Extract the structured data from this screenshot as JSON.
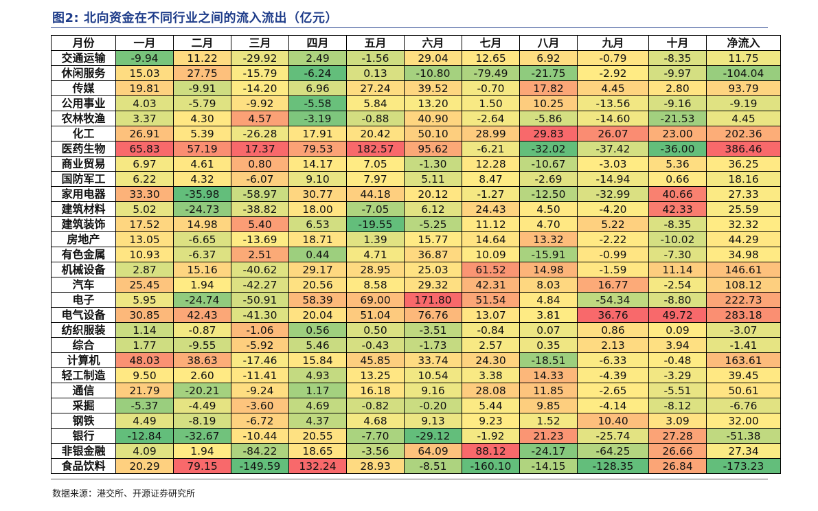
{
  "title": "图2:  北向资金在不同行业之间的流入流出（亿元）",
  "source": "数据来源：港交所、开源证券研究所",
  "table": {
    "corner": "月份",
    "columns": [
      "一月",
      "二月",
      "三月",
      "四月",
      "五月",
      "六月",
      "七月",
      "八月",
      "九月",
      "十月",
      "净流入"
    ],
    "rows": [
      {
        "label": "交通运输",
        "values": [
          "-9.94",
          "11.22",
          "-29.92",
          "2.49",
          "-1.56",
          "29.04",
          "12.65",
          "6.92",
          "-0.79",
          "-8.35",
          "11.75"
        ]
      },
      {
        "label": "休闲服务",
        "values": [
          "15.03",
          "27.75",
          "-15.79",
          "-6.24",
          "0.13",
          "-10.80",
          "-79.49",
          "-21.75",
          "-2.92",
          "-9.97",
          "-104.04"
        ]
      },
      {
        "label": "传媒",
        "values": [
          "19.81",
          "-9.91",
          "-14.20",
          "6.96",
          "27.24",
          "39.52",
          "-0.70",
          "17.82",
          "4.45",
          "2.80",
          "93.79"
        ]
      },
      {
        "label": "公用事业",
        "values": [
          "4.03",
          "-5.79",
          "-9.92",
          "-5.58",
          "5.84",
          "13.20",
          "1.50",
          "10.25",
          "-13.56",
          "-9.16",
          "-9.19"
        ]
      },
      {
        "label": "农林牧渔",
        "values": [
          "3.37",
          "4.30",
          "4.57",
          "-3.19",
          "-0.88",
          "40.90",
          "-2.64",
          "-5.86",
          "-14.60",
          "-21.53",
          "4.45"
        ]
      },
      {
        "label": "化工",
        "values": [
          "26.91",
          "5.39",
          "-26.28",
          "17.91",
          "20.42",
          "50.10",
          "28.99",
          "29.83",
          "26.07",
          "23.00",
          "202.36"
        ]
      },
      {
        "label": "医药生物",
        "values": [
          "65.83",
          "57.19",
          "17.37",
          "79.53",
          "182.57",
          "95.62",
          "-6.21",
          "-32.02",
          "-37.42",
          "-36.00",
          "386.46"
        ]
      },
      {
        "label": "商业贸易",
        "values": [
          "6.97",
          "4.61",
          "0.80",
          "14.17",
          "7.05",
          "-1.30",
          "12.28",
          "-10.67",
          "-3.03",
          "5.36",
          "36.25"
        ]
      },
      {
        "label": "国防军工",
        "values": [
          "6.22",
          "4.32",
          "-6.07",
          "9.10",
          "7.97",
          "5.11",
          "8.47",
          "-2.69",
          "-14.94",
          "0.66",
          "18.16"
        ]
      },
      {
        "label": "家用电器",
        "values": [
          "33.30",
          "-35.98",
          "-58.97",
          "30.77",
          "44.18",
          "20.12",
          "-1.27",
          "-12.50",
          "-32.99",
          "40.66",
          "27.33"
        ]
      },
      {
        "label": "建筑材料",
        "values": [
          "5.02",
          "-24.73",
          "-38.82",
          "18.00",
          "-7.05",
          "6.12",
          "24.43",
          "4.50",
          "-4.20",
          "42.33",
          "25.59"
        ]
      },
      {
        "label": "建筑装饰",
        "values": [
          "17.52",
          "14.98",
          "5.40",
          "6.53",
          "-19.55",
          "-5.25",
          "11.12",
          "4.70",
          "5.22",
          "-8.35",
          "32.32"
        ]
      },
      {
        "label": "房地产",
        "values": [
          "13.05",
          "-6.65",
          "-13.69",
          "18.71",
          "1.39",
          "15.77",
          "14.64",
          "13.32",
          "-2.22",
          "-10.02",
          "44.29"
        ]
      },
      {
        "label": "有色金属",
        "values": [
          "10.93",
          "-6.37",
          "2.51",
          "0.44",
          "4.71",
          "36.87",
          "10.09",
          "-15.91",
          "-0.99",
          "-7.30",
          "34.98"
        ]
      },
      {
        "label": "机械设备",
        "values": [
          "2.87",
          "15.16",
          "-40.62",
          "29.17",
          "28.95",
          "25.03",
          "61.52",
          "14.98",
          "-1.59",
          "11.14",
          "146.61"
        ]
      },
      {
        "label": "汽车",
        "values": [
          "25.45",
          "1.94",
          "-42.27",
          "20.56",
          "8.58",
          "29.32",
          "42.31",
          "8.03",
          "16.77",
          "-2.54",
          "108.12"
        ]
      },
      {
        "label": "电子",
        "values": [
          "5.95",
          "-24.74",
          "-50.91",
          "58.39",
          "69.00",
          "171.80",
          "51.54",
          "4.84",
          "-54.34",
          "-8.80",
          "222.73"
        ]
      },
      {
        "label": "电气设备",
        "values": [
          "30.85",
          "42.43",
          "-41.30",
          "20.04",
          "51.04",
          "76.76",
          "13.07",
          "3.81",
          "36.76",
          "49.72",
          "283.18"
        ]
      },
      {
        "label": "纺织服装",
        "values": [
          "1.14",
          "-0.87",
          "-1.06",
          "0.56",
          "0.50",
          "-3.51",
          "-0.84",
          "0.07",
          "0.86",
          "0.09",
          "-3.07"
        ]
      },
      {
        "label": "综合",
        "values": [
          "1.77",
          "-9.55",
          "-5.92",
          "5.46",
          "-0.43",
          "-1.73",
          "2.57",
          "0.35",
          "2.13",
          "3.94",
          "-1.41"
        ]
      },
      {
        "label": "计算机",
        "values": [
          "48.03",
          "38.63",
          "-17.46",
          "15.84",
          "45.85",
          "33.74",
          "24.30",
          "-18.51",
          "-6.33",
          "-0.48",
          "163.61"
        ]
      },
      {
        "label": "轻工制造",
        "values": [
          "9.50",
          "2.60",
          "-11.41",
          "4.93",
          "13.25",
          "10.54",
          "3.38",
          "14.33",
          "-4.39",
          "-3.29",
          "39.45"
        ]
      },
      {
        "label": "通信",
        "values": [
          "21.79",
          "-20.21",
          "-9.24",
          "1.17",
          "16.18",
          "9.16",
          "28.08",
          "11.85",
          "-2.65",
          "-5.51",
          "50.61"
        ]
      },
      {
        "label": "采掘",
        "values": [
          "-5.37",
          "-4.49",
          "-3.60",
          "4.69",
          "-0.82",
          "-0.20",
          "5.44",
          "9.85",
          "-4.14",
          "-8.12",
          "-6.76"
        ]
      },
      {
        "label": "钢铁",
        "values": [
          "4.49",
          "-8.19",
          "-6.72",
          "4.37",
          "4.68",
          "9.13",
          "9.23",
          "1.52",
          "10.40",
          "3.09",
          "32.00"
        ]
      },
      {
        "label": "银行",
        "values": [
          "-12.84",
          "-32.67",
          "-10.44",
          "20.55",
          "-7.70",
          "-29.12",
          "-1.92",
          "21.23",
          "-25.74",
          "27.28",
          "-51.38"
        ]
      },
      {
        "label": "非银金融",
        "values": [
          "4.09",
          "1.94",
          "-84.22",
          "18.65",
          "-3.56",
          "64.09",
          "88.12",
          "-24.17",
          "-64.25",
          "26.66",
          "27.34"
        ]
      },
      {
        "label": "食品饮料",
        "values": [
          "20.29",
          "79.15",
          "-149.59",
          "132.24",
          "28.93",
          "-8.51",
          "-160.10",
          "-14.15",
          "-128.35",
          "26.84",
          "-173.23"
        ]
      }
    ]
  }
}
